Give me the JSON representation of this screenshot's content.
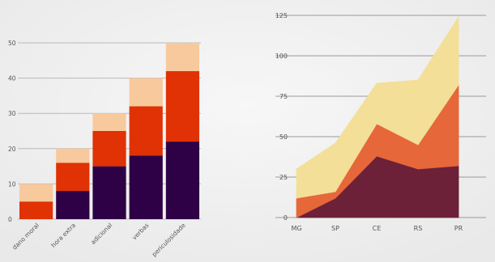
{
  "chart_data": [
    {
      "type": "bar",
      "stacked": true,
      "categories": [
        "dano moral",
        "hora extra",
        "adicional",
        "verbas",
        "periculosidade"
      ],
      "series": [
        {
          "color": "#2e0045",
          "values": [
            0,
            8,
            15,
            18,
            22
          ]
        },
        {
          "color": "#e03205",
          "values": [
            5,
            8,
            10,
            14,
            20
          ]
        },
        {
          "color": "#f8c99d",
          "values": [
            5,
            4,
            5,
            8,
            8
          ]
        }
      ],
      "ylim": [
        0,
        50
      ],
      "yticks": [
        0,
        10,
        20,
        30,
        40,
        50
      ],
      "grid": true,
      "xlabel_rotation": 45
    },
    {
      "type": "area",
      "stacked": true,
      "categories": [
        "MG",
        "SP",
        "CE",
        "RS",
        "PR"
      ],
      "series": [
        {
          "color": "#6c2139",
          "values": [
            0,
            12,
            38,
            30,
            32
          ]
        },
        {
          "color": "#e6673a",
          "values": [
            12,
            4,
            20,
            15,
            50
          ]
        },
        {
          "color": "#f3df97",
          "values": [
            18,
            30,
            25,
            40,
            42
          ]
        }
      ],
      "ylim": [
        0,
        125
      ],
      "yticks": [
        0,
        25,
        50,
        75,
        100,
        125
      ],
      "grid": true
    }
  ]
}
